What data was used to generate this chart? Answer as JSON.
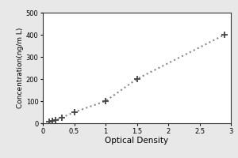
{
  "x": [
    0.1,
    0.15,
    0.2,
    0.3,
    0.5,
    1.0,
    1.5,
    2.9
  ],
  "y": [
    6,
    10,
    13,
    25,
    50,
    100,
    200,
    400
  ],
  "xlabel": "Optical Density",
  "ylabel": "Concentration(ng/m L)",
  "xlim": [
    0,
    3.0
  ],
  "ylim": [
    0,
    500
  ],
  "xticks": [
    0,
    0.5,
    1,
    1.5,
    2,
    2.5,
    3
  ],
  "xticklabels": [
    "0",
    "0.5",
    "1",
    "1.5",
    "2",
    "2.5",
    "3"
  ],
  "yticks": [
    0,
    100,
    200,
    300,
    400,
    500
  ],
  "marker": "+",
  "marker_size": 6,
  "marker_color": "#444444",
  "line_style": "dotted",
  "line_color": "#888888",
  "line_width": 1.5,
  "background_color": "#e8e8e8",
  "plot_bg_color": "#ffffff",
  "xlabel_fontsize": 7.5,
  "ylabel_fontsize": 6.5,
  "tick_fontsize": 6,
  "outer_border_color": "#aaaaaa"
}
